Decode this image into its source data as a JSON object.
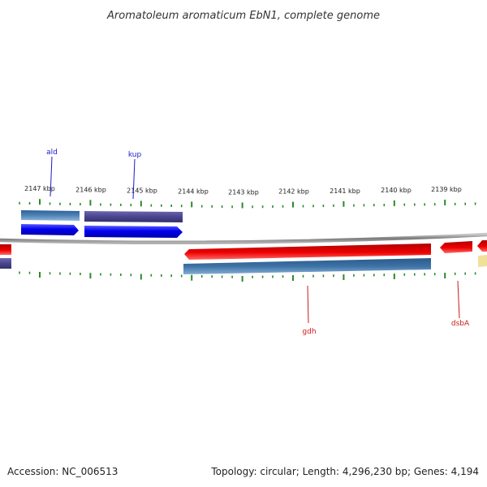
{
  "title": "Aromatoleum aromaticum EbN1, complete genome",
  "footer": {
    "accession": "Accession: NC_006513",
    "summary": "Topology: circular; Length: 4,296,230 bp; Genes: 4,194"
  },
  "colors": {
    "forward_cds": "#0000ee",
    "forward_gene": "#4a4590",
    "reverse_cds": "#ee0000",
    "reverse_gene": "#3d72a6",
    "other_feature": "#f0e09a",
    "backbone": "#888888",
    "ticks": "#2a8a2a",
    "forward_label": "#1a1ac8",
    "reverse_label": "#cc1a1a"
  },
  "ticks": [
    {
      "label": "2147 kbp"
    },
    {
      "label": "2146 kbp"
    },
    {
      "label": "2145 kbp"
    },
    {
      "label": "2144 kbp"
    },
    {
      "label": "2143 kbp"
    },
    {
      "label": "2142 kbp"
    },
    {
      "label": "2141 kbp"
    },
    {
      "label": "2140 kbp"
    },
    {
      "label": "2139 kbp"
    }
  ],
  "gene_labels": [
    {
      "name": "ald",
      "strand": "forward"
    },
    {
      "name": "kup",
      "strand": "forward"
    },
    {
      "name": "gdh",
      "strand": "reverse"
    },
    {
      "name": "dsbA",
      "strand": "reverse"
    }
  ]
}
